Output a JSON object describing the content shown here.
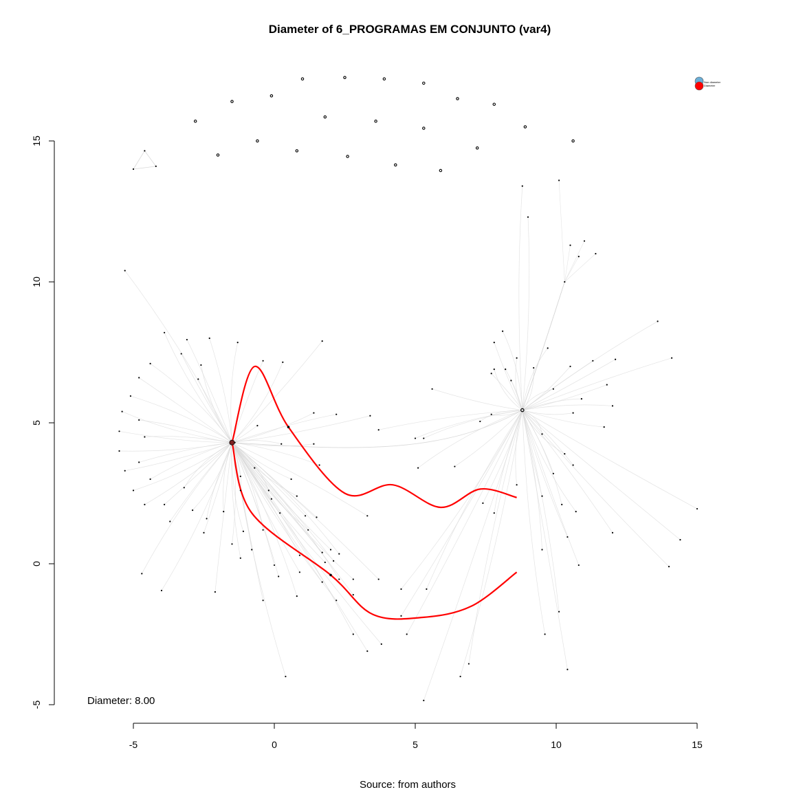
{
  "chart_data": {
    "type": "network",
    "title": "Diameter of 6_PROGRAMAS EM CONJUNTO (var4)",
    "caption": "Source: from authors",
    "annotation": "Diameter: 8.00",
    "xlim": [
      -5,
      15
    ],
    "ylim": [
      -5,
      15
    ],
    "x_ticks": [
      -5,
      0,
      5,
      10,
      15
    ],
    "y_ticks": [
      -5,
      0,
      5,
      10,
      15
    ],
    "x_tick_labels": [
      "-5",
      "0",
      "5",
      "10",
      "15"
    ],
    "y_tick_labels": [
      "-5",
      "0",
      "5",
      "10",
      "15"
    ],
    "legend": {
      "position": "top-right",
      "entries": [
        {
          "label": "Non diameter",
          "color": "#6baed6"
        },
        {
          "label": "Diameter",
          "color": "#ff0000"
        }
      ]
    },
    "colors": {
      "diameter": "#ff0000",
      "edge": "#d9d9d9",
      "node": "#000000"
    },
    "hubs": [
      {
        "x": -1.5,
        "y": 4.3
      },
      {
        "x": 8.8,
        "y": 5.45
      }
    ],
    "isolates": [
      [
        -2.8,
        15.7
      ],
      [
        -1.5,
        16.4
      ],
      [
        -0.1,
        16.6
      ],
      [
        1.0,
        17.2
      ],
      [
        2.5,
        17.25
      ],
      [
        3.9,
        17.2
      ],
      [
        5.3,
        17.05
      ],
      [
        6.5,
        16.5
      ],
      [
        7.8,
        16.3
      ],
      [
        -2.0,
        14.5
      ],
      [
        -0.6,
        15.0
      ],
      [
        0.8,
        14.65
      ],
      [
        1.8,
        15.85
      ],
      [
        2.6,
        14.45
      ],
      [
        3.6,
        15.7
      ],
      [
        4.3,
        14.15
      ],
      [
        5.3,
        15.45
      ],
      [
        5.9,
        13.95
      ],
      [
        7.2,
        14.75
      ],
      [
        8.9,
        15.5
      ],
      [
        10.6,
        15.0
      ]
    ],
    "triangle_nodes": [
      [
        -4.6,
        14.65
      ],
      [
        -5.0,
        14.0
      ],
      [
        -4.2,
        14.1
      ]
    ],
    "small_nodes": [
      [
        8.8,
        13.4
      ],
      [
        10.1,
        13.6
      ],
      [
        9.0,
        12.3
      ],
      [
        10.5,
        11.3
      ],
      [
        11.0,
        11.45
      ],
      [
        10.8,
        10.9
      ],
      [
        11.4,
        11.0
      ],
      [
        10.3,
        10.0
      ],
      [
        14.1,
        7.3
      ],
      [
        12.1,
        7.25
      ],
      [
        13.6,
        8.6
      ],
      [
        15.0,
        1.95
      ],
      [
        14.4,
        0.85
      ],
      [
        14.0,
        -0.1
      ],
      [
        -5.3,
        10.4
      ],
      [
        -3.9,
        8.2
      ],
      [
        -3.1,
        7.95
      ],
      [
        -2.3,
        8.0
      ],
      [
        -1.3,
        7.85
      ],
      [
        -3.3,
        7.45
      ],
      [
        -4.4,
        7.1
      ],
      [
        -2.6,
        7.05
      ],
      [
        -0.4,
        7.2
      ],
      [
        0.3,
        7.15
      ],
      [
        -4.8,
        6.6
      ],
      [
        -2.7,
        6.55
      ],
      [
        -5.1,
        5.95
      ],
      [
        -5.4,
        5.4
      ],
      [
        -4.8,
        5.1
      ],
      [
        -5.5,
        4.7
      ],
      [
        -4.6,
        4.5
      ],
      [
        -5.5,
        4.0
      ],
      [
        -4.8,
        3.6
      ],
      [
        -5.3,
        3.3
      ],
      [
        -4.4,
        3.0
      ],
      [
        -5.0,
        2.6
      ],
      [
        -3.2,
        2.7
      ],
      [
        -4.6,
        2.1
      ],
      [
        -3.9,
        2.1
      ],
      [
        -2.4,
        1.6
      ],
      [
        -3.7,
        1.5
      ],
      [
        -2.9,
        1.9
      ],
      [
        -1.8,
        1.85
      ],
      [
        -2.5,
        1.1
      ],
      [
        -1.5,
        0.7
      ],
      [
        -1.1,
        1.15
      ],
      [
        -1.2,
        3.1
      ],
      [
        -1.2,
        2.6
      ],
      [
        -0.7,
        3.4
      ],
      [
        0.6,
        3.0
      ],
      [
        -0.2,
        2.6
      ],
      [
        0.8,
        2.4
      ],
      [
        1.6,
        3.5
      ],
      [
        1.1,
        1.7
      ],
      [
        -0.1,
        2.3
      ],
      [
        0.2,
        1.8
      ],
      [
        -0.4,
        1.2
      ],
      [
        1.2,
        1.2
      ],
      [
        -0.8,
        0.5
      ],
      [
        0.9,
        0.3
      ],
      [
        1.7,
        0.4
      ],
      [
        2.0,
        0.5
      ],
      [
        2.3,
        0.35
      ],
      [
        1.8,
        0.05
      ],
      [
        2.1,
        0.1
      ],
      [
        0.0,
        -0.05
      ],
      [
        0.9,
        -0.3
      ],
      [
        1.7,
        -0.65
      ],
      [
        2.3,
        -0.55
      ],
      [
        2.8,
        -0.55
      ],
      [
        3.7,
        -0.55
      ],
      [
        0.15,
        -0.45
      ],
      [
        -1.2,
        0.2
      ],
      [
        -0.4,
        -1.3
      ],
      [
        0.8,
        -1.15
      ],
      [
        2.2,
        -1.3
      ],
      [
        2.8,
        -1.1
      ],
      [
        4.5,
        -0.9
      ],
      [
        5.4,
        -0.9
      ],
      [
        4.5,
        -1.85
      ],
      [
        4.7,
        -2.5
      ],
      [
        3.8,
        -2.85
      ],
      [
        3.3,
        -3.1
      ],
      [
        6.6,
        -4.0
      ],
      [
        6.9,
        -3.55
      ],
      [
        5.3,
        -4.85
      ],
      [
        2.8,
        -2.5
      ],
      [
        0.4,
        -4.0
      ],
      [
        -2.1,
        -1.0
      ],
      [
        -4.0,
        -0.95
      ],
      [
        -4.7,
        -0.35
      ],
      [
        1.4,
        5.35
      ],
      [
        2.2,
        5.3
      ],
      [
        3.4,
        5.25
      ],
      [
        3.7,
        4.75
      ],
      [
        5.6,
        6.2
      ],
      [
        5.0,
        4.45
      ],
      [
        1.7,
        7.9
      ],
      [
        -1.4,
        4.3
      ],
      [
        -0.6,
        4.9
      ],
      [
        0.25,
        4.25
      ],
      [
        1.4,
        4.25
      ],
      [
        5.1,
        3.4
      ],
      [
        6.4,
        3.45
      ],
      [
        7.4,
        2.15
      ],
      [
        7.8,
        1.8
      ],
      [
        3.3,
        1.7
      ],
      [
        1.5,
        1.65
      ],
      [
        5.3,
        4.45
      ],
      [
        7.8,
        7.85
      ],
      [
        8.1,
        8.25
      ],
      [
        8.6,
        7.3
      ],
      [
        8.2,
        6.9
      ],
      [
        9.2,
        6.95
      ],
      [
        9.7,
        7.65
      ],
      [
        10.5,
        7.0
      ],
      [
        11.3,
        7.2
      ],
      [
        7.8,
        6.9
      ],
      [
        8.4,
        6.5
      ],
      [
        7.7,
        6.75
      ],
      [
        9.9,
        6.2
      ],
      [
        10.6,
        5.35
      ],
      [
        10.9,
        5.85
      ],
      [
        11.8,
        6.35
      ],
      [
        12.0,
        5.6
      ],
      [
        11.7,
        4.85
      ],
      [
        7.3,
        5.05
      ],
      [
        7.7,
        5.3
      ],
      [
        9.5,
        4.6
      ],
      [
        10.3,
        3.9
      ],
      [
        10.6,
        3.5
      ],
      [
        9.9,
        3.2
      ],
      [
        8.6,
        2.8
      ],
      [
        9.5,
        2.4
      ],
      [
        10.2,
        2.1
      ],
      [
        10.7,
        1.85
      ],
      [
        12.0,
        1.1
      ],
      [
        9.5,
        0.5
      ],
      [
        10.4,
        0.95
      ],
      [
        10.8,
        -0.05
      ],
      [
        10.1,
        -1.7
      ],
      [
        9.6,
        -2.5
      ],
      [
        10.4,
        -3.75
      ]
    ],
    "diameter_path": [
      [
        -1.5,
        4.3
      ],
      [
        -0.7,
        7.0
      ],
      [
        0.5,
        4.85
      ],
      [
        2.5,
        2.5
      ],
      [
        4.2,
        2.8
      ],
      [
        5.9,
        2.0
      ],
      [
        7.3,
        2.65
      ],
      [
        8.6,
        2.35
      ]
    ],
    "diameter_path_2": [
      [
        -1.5,
        4.3
      ],
      [
        -0.8,
        1.8
      ],
      [
        2.0,
        -0.4
      ],
      [
        3.5,
        -1.8
      ],
      [
        5.3,
        -1.9
      ],
      [
        7.0,
        -1.5
      ],
      [
        8.6,
        -0.3
      ]
    ],
    "annotation_position": "bottom-left"
  }
}
